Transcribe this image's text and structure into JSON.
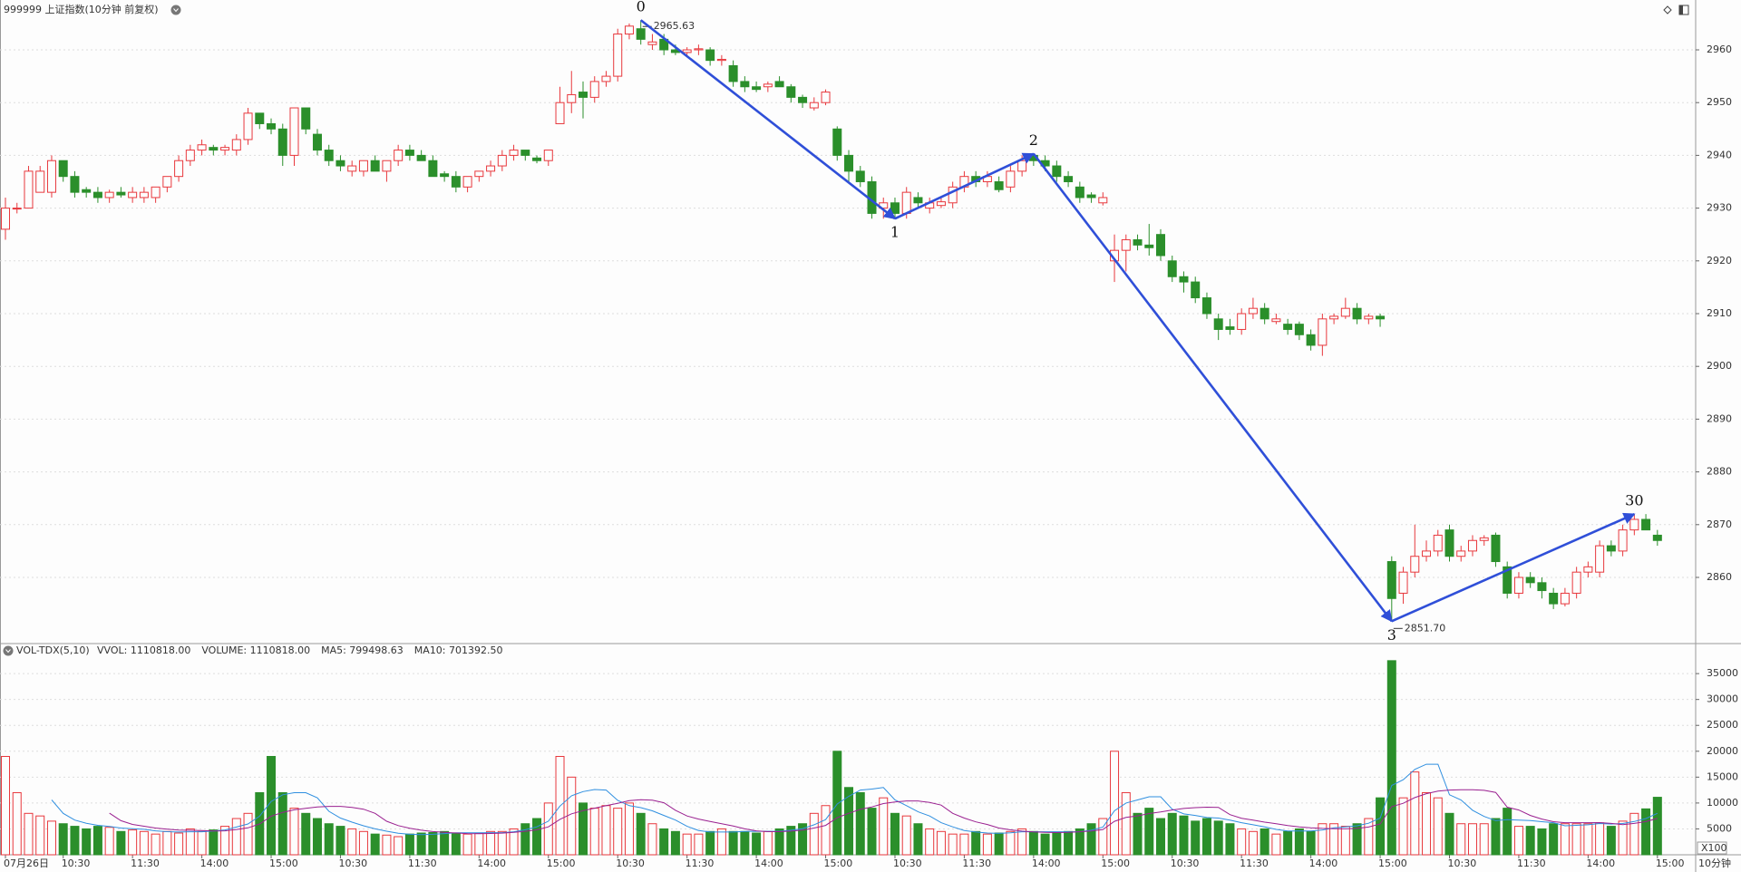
{
  "chart_data": [
    {
      "type": "candlestick",
      "title": "999999 上证指数(10分钟 前复权)",
      "up_color": "#e8383d",
      "down_color": "#2b8f2b",
      "grid": true,
      "ylim": [
        2847.8,
        2969.45
      ],
      "yticks": [
        2860,
        2870,
        2880,
        2890,
        2900,
        2910,
        2920,
        2930,
        2940,
        2950,
        2960
      ],
      "categories": [
        "07月26日",
        null,
        null,
        null,
        null,
        "10:30",
        null,
        null,
        null,
        null,
        null,
        "11:30",
        null,
        null,
        null,
        null,
        null,
        "14:00",
        null,
        null,
        null,
        null,
        null,
        "15:00",
        null,
        null,
        null,
        null,
        null,
        "10:30",
        null,
        null,
        null,
        null,
        null,
        "11:30",
        null,
        null,
        null,
        null,
        null,
        "14:00",
        null,
        null,
        null,
        null,
        null,
        "15:00",
        null,
        null,
        null,
        null,
        null,
        "10:30",
        null,
        null,
        null,
        null,
        null,
        "11:30",
        null,
        null,
        null,
        null,
        null,
        "14:00",
        null,
        null,
        null,
        null,
        null,
        "15:00",
        null,
        null,
        null,
        null,
        null,
        "10:30",
        null,
        null,
        null,
        null,
        null,
        "11:30",
        null,
        null,
        null,
        null,
        null,
        "14:00",
        null,
        null,
        null,
        null,
        null,
        "15:00",
        null,
        null,
        null,
        null,
        null,
        "10:30",
        null,
        null,
        null,
        null,
        null,
        "11:30",
        null,
        null,
        null,
        null,
        null,
        "14:00",
        null,
        null,
        null,
        null,
        null,
        "15:00",
        null,
        null,
        null,
        null,
        null,
        "10:30",
        null,
        null,
        null,
        null,
        null,
        "11:30",
        null,
        null,
        null,
        null,
        null,
        "14:00",
        null,
        null,
        null,
        null,
        null,
        "15:00"
      ],
      "ohlc": [
        [
          2926,
          2932,
          2924,
          2930
        ],
        [
          2930,
          2931,
          2929,
          2930
        ],
        [
          2930,
          2938,
          2930,
          2937
        ],
        [
          2933,
          2938,
          2933,
          2937
        ],
        [
          2933,
          2940,
          2932,
          2939
        ],
        [
          2939,
          2939,
          2935,
          2936
        ],
        [
          2936,
          2937,
          2932,
          2933
        ],
        [
          2933.5,
          2934,
          2932,
          2933
        ],
        [
          2933,
          2934,
          2931,
          2932
        ],
        [
          2932,
          2933.5,
          2931,
          2933
        ],
        [
          2933,
          2934,
          2932,
          2932.5
        ],
        [
          2932,
          2934,
          2931,
          2933
        ],
        [
          2932,
          2934,
          2931,
          2933
        ],
        [
          2932,
          2934,
          2931,
          2934
        ],
        [
          2934,
          2936,
          2933,
          2936
        ],
        [
          2936,
          2940,
          2935,
          2939
        ],
        [
          2939,
          2942,
          2938,
          2941
        ],
        [
          2941,
          2943,
          2940,
          2942
        ],
        [
          2941.5,
          2942,
          2940,
          2941
        ],
        [
          2941,
          2942,
          2940,
          2941.5
        ],
        [
          2941,
          2944,
          2940,
          2943
        ],
        [
          2943,
          2949,
          2942,
          2948
        ],
        [
          2948,
          2948,
          2945,
          2946
        ],
        [
          2946,
          2947,
          2944,
          2945
        ],
        [
          2945,
          2946,
          2938,
          2940
        ],
        [
          2940,
          2949,
          2938,
          2949
        ],
        [
          2949,
          2949,
          2944,
          2945
        ],
        [
          2944,
          2945,
          2940,
          2941
        ],
        [
          2941,
          2942,
          2938,
          2939
        ],
        [
          2939,
          2940,
          2937,
          2938
        ],
        [
          2937,
          2939,
          2936,
          2938
        ],
        [
          2937,
          2939,
          2936,
          2939
        ],
        [
          2939,
          2940,
          2937,
          2937
        ],
        [
          2937,
          2939,
          2935,
          2939
        ],
        [
          2939,
          2942,
          2938,
          2941
        ],
        [
          2941,
          2942,
          2939,
          2940
        ],
        [
          2940,
          2941,
          2939,
          2939
        ],
        [
          2939,
          2940,
          2936,
          2936
        ],
        [
          2936.5,
          2937,
          2935,
          2936
        ],
        [
          2936,
          2937,
          2933,
          2934
        ],
        [
          2934,
          2936,
          2933,
          2936
        ],
        [
          2936,
          2937,
          2935,
          2937
        ],
        [
          2937,
          2939,
          2936,
          2938
        ],
        [
          2938,
          2941,
          2937,
          2940
        ],
        [
          2940,
          2942,
          2939,
          2941
        ],
        [
          2941,
          2941,
          2939,
          2940
        ],
        [
          2939.5,
          2940,
          2938.5,
          2939
        ],
        [
          2939,
          2941,
          2938,
          2941
        ],
        [
          2946,
          2953,
          2946,
          2950
        ],
        [
          2950,
          2956,
          2948,
          2951.5
        ],
        [
          2952,
          2954,
          2947,
          2951
        ],
        [
          2951,
          2955,
          2950,
          2954
        ],
        [
          2954,
          2956,
          2953,
          2955
        ],
        [
          2955,
          2964,
          2954,
          2963
        ],
        [
          2963,
          2965,
          2962,
          2964.5
        ],
        [
          2964,
          2965.63,
          2961,
          2962
        ],
        [
          2961,
          2963,
          2960,
          2961.5
        ],
        [
          2962,
          2963,
          2959,
          2960
        ],
        [
          2960,
          2961,
          2959,
          2959.5
        ],
        [
          2959.5,
          2960.5,
          2959,
          2960
        ],
        [
          2960,
          2961,
          2959,
          2960.2
        ],
        [
          2960,
          2960.5,
          2957,
          2958
        ],
        [
          2958,
          2959,
          2957,
          2958.2
        ],
        [
          2957,
          2958,
          2953,
          2954
        ],
        [
          2954,
          2955,
          2952,
          2953
        ],
        [
          2953,
          2954,
          2952,
          2952.5
        ],
        [
          2953,
          2954,
          2952,
          2953.5
        ],
        [
          2954,
          2955,
          2953,
          2953
        ],
        [
          2953,
          2953.5,
          2950,
          2951
        ],
        [
          2951,
          2951.5,
          2949,
          2950
        ],
        [
          2949,
          2951,
          2948.5,
          2950
        ],
        [
          2950,
          2952.5,
          2949.5,
          2952
        ],
        [
          2945,
          2945.5,
          2939,
          2940
        ],
        [
          2940,
          2941,
          2935,
          2937
        ],
        [
          2937,
          2938,
          2934,
          2935
        ],
        [
          2935,
          2936,
          2928,
          2929
        ],
        [
          2930,
          2932,
          2928,
          2931
        ],
        [
          2931,
          2932,
          2928,
          2929
        ],
        [
          2929,
          2934,
          2928,
          2933
        ],
        [
          2932,
          2933,
          2930,
          2931
        ],
        [
          2930,
          2932,
          2929,
          2931
        ],
        [
          2930.5,
          2932,
          2930,
          2931.2
        ],
        [
          2931,
          2935,
          2930,
          2934
        ],
        [
          2934,
          2937,
          2933,
          2936
        ],
        [
          2936,
          2937,
          2934,
          2935
        ],
        [
          2935,
          2937,
          2934,
          2936
        ],
        [
          2935,
          2936,
          2933,
          2933.5
        ],
        [
          2934,
          2938,
          2933,
          2937
        ],
        [
          2937,
          2940,
          2936,
          2939
        ],
        [
          2940,
          2940.3,
          2938,
          2939
        ],
        [
          2939,
          2940,
          2937,
          2938
        ],
        [
          2938,
          2939,
          2935,
          2936
        ],
        [
          2936,
          2937,
          2934,
          2935
        ],
        [
          2934,
          2935,
          2931,
          2932
        ],
        [
          2932.5,
          2933,
          2931,
          2932
        ],
        [
          2931,
          2933,
          2930.5,
          2932
        ],
        [
          2920,
          2925,
          2916,
          2922
        ],
        [
          2922,
          2925,
          2918,
          2924
        ],
        [
          2924,
          2925,
          2922,
          2923
        ],
        [
          2923,
          2927,
          2921,
          2922.5
        ],
        [
          2925,
          2926,
          2920,
          2921
        ],
        [
          2920,
          2921,
          2916,
          2917
        ],
        [
          2917,
          2918,
          2914,
          2916
        ],
        [
          2916,
          2917,
          2912,
          2913
        ],
        [
          2913,
          2914,
          2909,
          2910
        ],
        [
          2909,
          2910,
          2905,
          2907
        ],
        [
          2907.5,
          2909,
          2906,
          2907
        ],
        [
          2907,
          2911,
          2906,
          2910
        ],
        [
          2910,
          2913,
          2909,
          2911
        ],
        [
          2911,
          2912,
          2908,
          2909
        ],
        [
          2908.5,
          2910,
          2908,
          2909
        ],
        [
          2908,
          2909,
          2906,
          2907
        ],
        [
          2908,
          2908.5,
          2905,
          2906
        ],
        [
          2906,
          2907,
          2903,
          2904
        ],
        [
          2904,
          2910,
          2902,
          2909
        ],
        [
          2909,
          2910,
          2908,
          2909.5
        ],
        [
          2909.5,
          2913,
          2909,
          2911
        ],
        [
          2911,
          2912,
          2908,
          2909
        ],
        [
          2909,
          2910,
          2908,
          2909.5
        ],
        [
          2909.5,
          2910,
          2907.5,
          2909
        ],
        [
          2863,
          2864,
          2851.7,
          2856
        ],
        [
          2857,
          2862,
          2855,
          2861
        ],
        [
          2861,
          2870,
          2860,
          2864
        ],
        [
          2864,
          2867,
          2863,
          2865
        ],
        [
          2865,
          2869,
          2864,
          2868
        ],
        [
          2869,
          2870,
          2863,
          2864
        ],
        [
          2864,
          2866,
          2863,
          2865
        ],
        [
          2865,
          2868,
          2864,
          2867
        ],
        [
          2867,
          2868,
          2866,
          2867.5
        ],
        [
          2868,
          2868.5,
          2862,
          2863
        ],
        [
          2862,
          2863,
          2856,
          2857
        ],
        [
          2857,
          2861,
          2856,
          2860
        ],
        [
          2860,
          2861,
          2858,
          2859
        ],
        [
          2859,
          2860,
          2856,
          2857.5
        ],
        [
          2857,
          2858,
          2854,
          2855
        ],
        [
          2855,
          2858,
          2854.5,
          2857
        ],
        [
          2857,
          2862,
          2856,
          2861
        ],
        [
          2861,
          2863,
          2860,
          2862
        ],
        [
          2861,
          2867,
          2860,
          2866
        ],
        [
          2866,
          2867,
          2864,
          2865
        ],
        [
          2865,
          2870,
          2864,
          2869
        ],
        [
          2869,
          2872,
          2868,
          2871
        ],
        [
          2871,
          2872,
          2869,
          2869
        ],
        [
          2868,
          2869,
          2866,
          2867
        ]
      ],
      "zigzag": {
        "color": "#2f4fd8",
        "points": [
          {
            "label": "0",
            "index": 55,
            "price": 2965.63,
            "price_label": "2965.63"
          },
          {
            "label": "1",
            "index": 77,
            "price": 2928
          },
          {
            "label": "2",
            "index": 89,
            "price": 2940.3
          },
          {
            "label": "3",
            "index": 120,
            "price": 2851.7,
            "price_label": "2851.70"
          },
          {
            "label": "30",
            "index": 141,
            "price": 2872
          }
        ]
      },
      "period_label": "10分钟"
    },
    {
      "type": "bar",
      "title": "VOL-TDX(5,10)",
      "unit_label": "X100",
      "ylim": [
        0,
        38000
      ],
      "yticks": [
        5000,
        10000,
        15000,
        20000,
        25000,
        30000,
        35000
      ],
      "legend": [
        {
          "text": "VVOL: 1110818.00",
          "color": "#333333"
        },
        {
          "text": "VOLUME: 1110818.00",
          "color": "#2f80d0"
        },
        {
          "text": "MA5: 799498.63",
          "color": "#2f80d0"
        },
        {
          "text": "MA10: 701392.50",
          "color": "#9a2090"
        }
      ],
      "ma_lines": [
        {
          "name": "MA5",
          "period": 5,
          "color": "#2f8fe0"
        },
        {
          "name": "MA10",
          "period": 10,
          "color": "#9a2090"
        }
      ],
      "values": [
        19000,
        12000,
        8000,
        7500,
        6500,
        6000,
        5500,
        5000,
        5500,
        5300,
        4500,
        4800,
        4500,
        4000,
        4500,
        4200,
        5000,
        4500,
        4800,
        5500,
        7000,
        8000,
        12000,
        19000,
        12000,
        9000,
        8000,
        7000,
        6000,
        5500,
        5000,
        4500,
        4000,
        3800,
        3500,
        4000,
        4200,
        4300,
        4500,
        4200,
        4000,
        4200,
        4500,
        4500,
        5000,
        6000,
        7000,
        10000,
        19000,
        15000,
        10000,
        9000,
        9500,
        9000,
        10000,
        8000,
        6000,
        5000,
        4500,
        4000,
        4000,
        4500,
        5000,
        4500,
        4500,
        4200,
        4500,
        5000,
        5500,
        6000,
        8000,
        9500,
        20000,
        13000,
        12000,
        9000,
        11000,
        8000,
        7500,
        6000,
        5000,
        4500,
        4000,
        4000,
        4500,
        4000,
        4200,
        4500,
        5000,
        4500,
        4000,
        4200,
        4500,
        5000,
        6000,
        7000,
        20000,
        12000,
        8000,
        9000,
        7000,
        8000,
        7500,
        6500,
        7000,
        6500,
        6000,
        5000,
        4500,
        5000,
        4000,
        4500,
        5000,
        4500,
        6000,
        6000,
        5500,
        6000,
        7000,
        11000,
        37500,
        11000,
        16000,
        12000,
        11000,
        8000,
        6000,
        6000,
        6000,
        7000,
        9000,
        5500,
        5500,
        5000,
        6000,
        6000,
        6000,
        6000,
        6164,
        5500,
        6500,
        8000,
        8867,
        11108.18
      ]
    }
  ]
}
